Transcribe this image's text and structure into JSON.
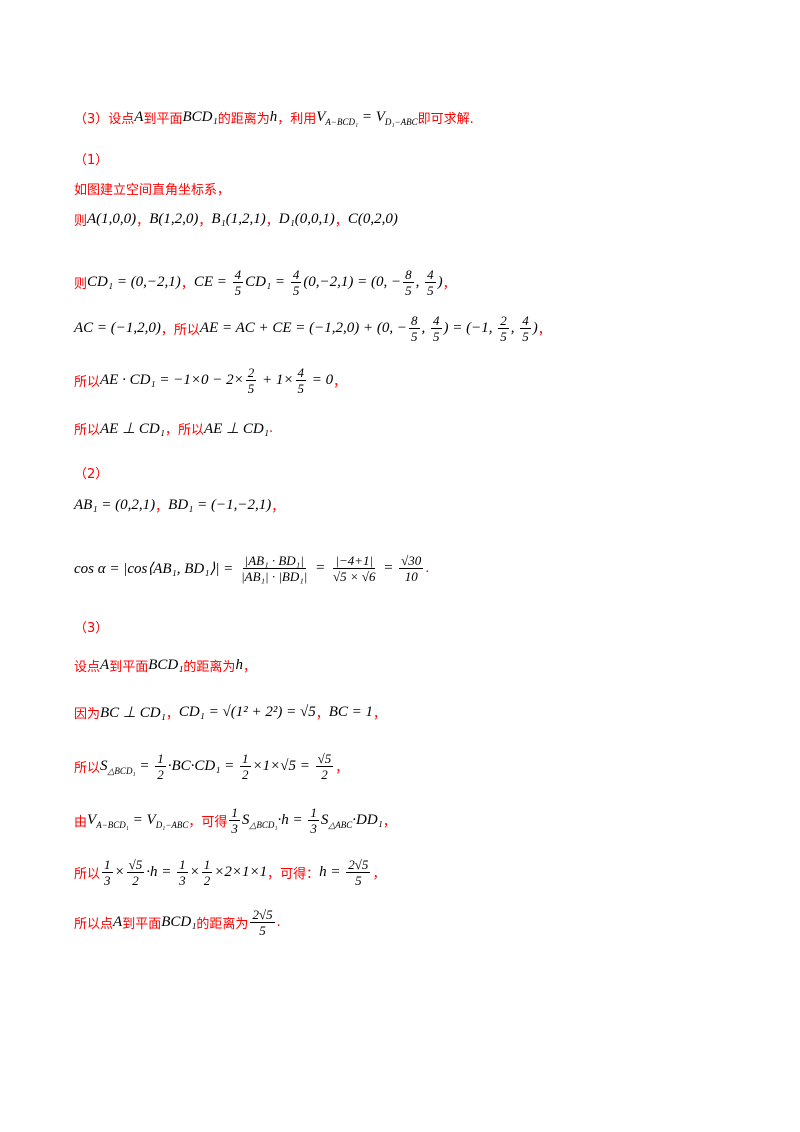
{
  "lines": [
    [
      {
        "zh": "（3）设点"
      },
      {
        "m": "A"
      },
      {
        "zh": "到平面"
      },
      {
        "m": "BCD₁"
      },
      {
        "zh": "的距离为"
      },
      {
        "m": "h"
      },
      {
        "zh": "，利用"
      },
      {
        "m": "V"
      },
      {
        "sub": "A−BCD₁"
      },
      {
        "m": " = V"
      },
      {
        "sub": "D₁−ABC"
      },
      {
        "zh": "即可求解."
      }
    ],
    [
      {
        "zh": "（1）"
      }
    ],
    [
      {
        "zh": "如图建立空间直角坐标系，"
      }
    ],
    [
      {
        "zh": "则"
      },
      {
        "m": "A(1,0,0)"
      },
      {
        "zh": "，"
      },
      {
        "m": "B(1,2,0)"
      },
      {
        "zh": "，"
      },
      {
        "m": "B₁(1,2,1)"
      },
      {
        "zh": "，"
      },
      {
        "m": "D₁(0,0,1)"
      },
      {
        "zh": "，"
      },
      {
        "m": "C(0,2,0)"
      }
    ],
    [
      {
        "zh": "则"
      },
      {
        "m": "CD₁ = (0,−2,1)"
      },
      {
        "zh": "，"
      },
      {
        "m": "CE = "
      },
      {
        "frac": [
          "4",
          "5"
        ]
      },
      {
        "m": "CD₁ = "
      },
      {
        "frac": [
          "4",
          "5"
        ]
      },
      {
        "m": "(0,−2,1) = (0, −"
      },
      {
        "frac": [
          "8",
          "5"
        ]
      },
      {
        "m": ", "
      },
      {
        "frac": [
          "4",
          "5"
        ]
      },
      {
        "m": ")"
      },
      {
        "zh": "，"
      }
    ],
    [
      {
        "m": "AC = (−1,2,0)"
      },
      {
        "zh": "，所以"
      },
      {
        "m": "AE = AC + CE = (−1,2,0) + (0, −"
      },
      {
        "frac": [
          "8",
          "5"
        ]
      },
      {
        "m": ", "
      },
      {
        "frac": [
          "4",
          "5"
        ]
      },
      {
        "m": ") = (−1, "
      },
      {
        "frac": [
          "2",
          "5"
        ]
      },
      {
        "m": ", "
      },
      {
        "frac": [
          "4",
          "5"
        ]
      },
      {
        "m": ")"
      },
      {
        "zh": "，"
      }
    ],
    [
      {
        "zh": "所以"
      },
      {
        "m": "AE · CD₁ = −1×0 − 2×"
      },
      {
        "frac": [
          "2",
          "5"
        ]
      },
      {
        "m": " + 1×"
      },
      {
        "frac": [
          "4",
          "5"
        ]
      },
      {
        "m": " = 0"
      },
      {
        "zh": "，"
      }
    ],
    [
      {
        "zh": "所以"
      },
      {
        "m": "AE ⊥ CD₁"
      },
      {
        "zh": "，所以"
      },
      {
        "m": "AE ⊥ CD₁"
      },
      {
        "zh": "."
      }
    ],
    [
      {
        "zh": "（2）"
      }
    ],
    [
      {
        "m": "AB₁ = (0,2,1)"
      },
      {
        "zh": "，"
      },
      {
        "m": "BD₁ = (−1,−2,1)"
      },
      {
        "zh": "，"
      }
    ],
    [
      {
        "m": "cos α = |cos⟨AB₁, BD₁⟩| = "
      },
      {
        "frac": [
          "|AB₁ · BD₁|",
          "|AB₁| · |BD₁|"
        ]
      },
      {
        "m": " = "
      },
      {
        "frac": [
          "|−4+1|",
          "√5 × √6"
        ]
      },
      {
        "m": " = "
      },
      {
        "frac": [
          "√30",
          "10"
        ]
      },
      {
        "zh": "."
      }
    ],
    [
      {
        "zh": "（3）"
      }
    ],
    [
      {
        "zh": "设点"
      },
      {
        "m": "A"
      },
      {
        "zh": "到平面"
      },
      {
        "m": "BCD₁"
      },
      {
        "zh": "的距离为"
      },
      {
        "m": "h"
      },
      {
        "zh": "，"
      }
    ],
    [
      {
        "zh": "因为"
      },
      {
        "m": "BC ⊥ CD₁"
      },
      {
        "zh": "，"
      },
      {
        "m": "CD₁ = √(1² + 2²) = √5"
      },
      {
        "zh": "，"
      },
      {
        "m": "BC = 1"
      },
      {
        "zh": "，"
      }
    ],
    [
      {
        "zh": "所以"
      },
      {
        "m": "S"
      },
      {
        "sub": "△BCD₁"
      },
      {
        "m": " = "
      },
      {
        "frac": [
          "1",
          "2"
        ]
      },
      {
        "m": "·BC·CD₁ = "
      },
      {
        "frac": [
          "1",
          "2"
        ]
      },
      {
        "m": "×1×√5 = "
      },
      {
        "frac": [
          "√5",
          "2"
        ]
      },
      {
        "zh": "，"
      }
    ],
    [
      {
        "zh": "由"
      },
      {
        "m": "V"
      },
      {
        "sub": "A−BCD₁"
      },
      {
        "m": " = V"
      },
      {
        "sub": "D₁−ABC"
      },
      {
        "zh": "，可得"
      },
      {
        "frac": [
          "1",
          "3"
        ]
      },
      {
        "m": "S"
      },
      {
        "sub": "△BCD₁"
      },
      {
        "m": "·h = "
      },
      {
        "frac": [
          "1",
          "3"
        ]
      },
      {
        "m": "S"
      },
      {
        "sub": "△ABC"
      },
      {
        "m": "·DD₁"
      },
      {
        "zh": "，"
      }
    ],
    [
      {
        "zh": "所以"
      },
      {
        "frac": [
          "1",
          "3"
        ]
      },
      {
        "m": "×"
      },
      {
        "frac": [
          "√5",
          "2"
        ]
      },
      {
        "m": "·h = "
      },
      {
        "frac": [
          "1",
          "3"
        ]
      },
      {
        "m": "×"
      },
      {
        "frac": [
          "1",
          "2"
        ]
      },
      {
        "m": "×2×1×1"
      },
      {
        "zh": "，可得："
      },
      {
        "m": "h = "
      },
      {
        "frac": [
          "2√5",
          "5"
        ]
      },
      {
        "zh": "，"
      }
    ],
    [
      {
        "zh": "所以点"
      },
      {
        "m": "A"
      },
      {
        "zh": "到平面"
      },
      {
        "m": "BCD₁"
      },
      {
        "zh": "的距离为"
      },
      {
        "frac": [
          "2√5",
          "5"
        ]
      },
      {
        "zh": "."
      }
    ]
  ]
}
